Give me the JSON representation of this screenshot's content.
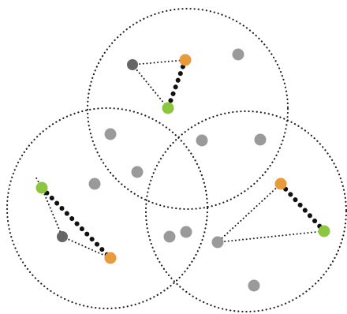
{
  "diagram": {
    "colors": {
      "background": "#ffffff",
      "circle_stroke": "#222222",
      "node_gray": "#9a9a9a",
      "node_dark": "#666666",
      "node_orange": "#e89a3c",
      "node_green": "#8cc63f",
      "edge_dark": "#111111"
    },
    "circles": [
      {
        "name": "top"
      },
      {
        "name": "bottom-left"
      },
      {
        "name": "bottom-right"
      }
    ],
    "node_kinds": [
      "gray",
      "dark",
      "orange",
      "green"
    ]
  }
}
